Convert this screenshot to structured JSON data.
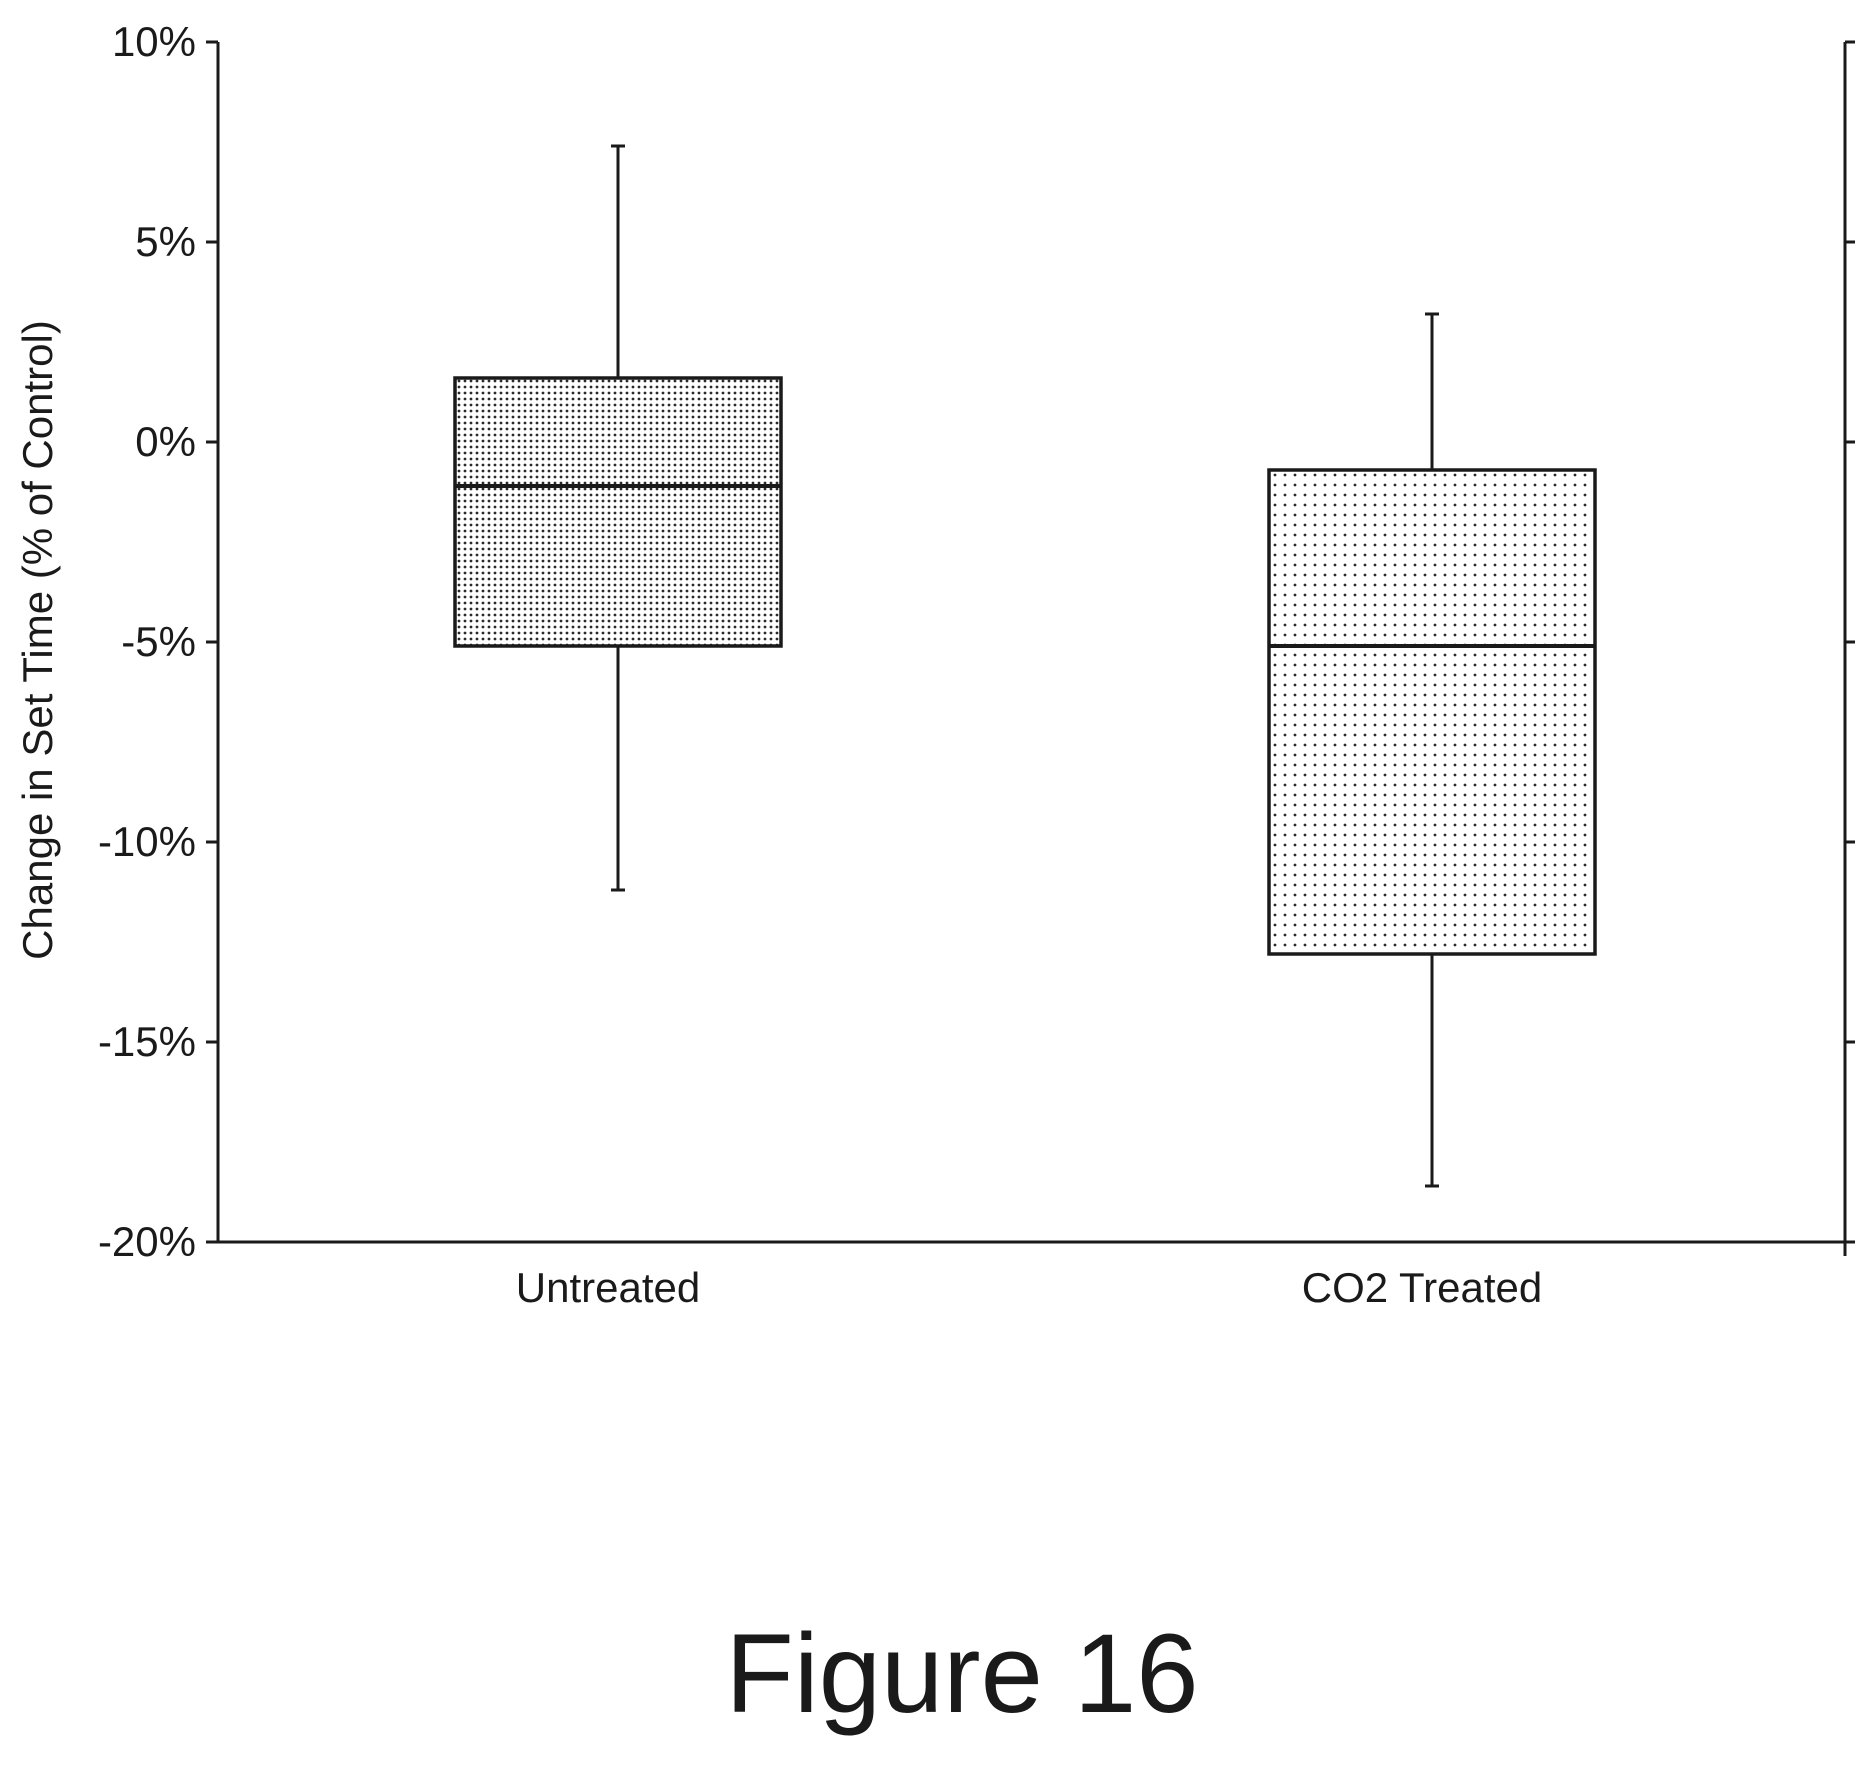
{
  "caption": "Figure 16",
  "chart_data": {
    "type": "box",
    "ylabel": "Change in Set Time (% of Control)",
    "xlabel": "",
    "ylim": [
      -20,
      10
    ],
    "yticks": [
      10,
      5,
      0,
      -5,
      -10,
      -15,
      -20
    ],
    "ytick_labels": [
      "10%",
      "5%",
      "0%",
      "-5%",
      "-10%",
      "-15%",
      "-20%"
    ],
    "categories": [
      "Untreated",
      "CO2 Treated"
    ],
    "boxes": [
      {
        "category": "Untreated",
        "whisker_low": -11.2,
        "q1": -5.1,
        "median": -1.1,
        "q3": 1.6,
        "whisker_high": 7.4,
        "fill": "fine-dot"
      },
      {
        "category": "CO2 Treated",
        "whisker_low": -18.6,
        "q1": -12.8,
        "median": -5.1,
        "q3": -0.7,
        "whisker_high": 3.2,
        "fill": "sparse-dot"
      }
    ],
    "secondary_y_axis": true,
    "grid": false,
    "legend": "none"
  }
}
